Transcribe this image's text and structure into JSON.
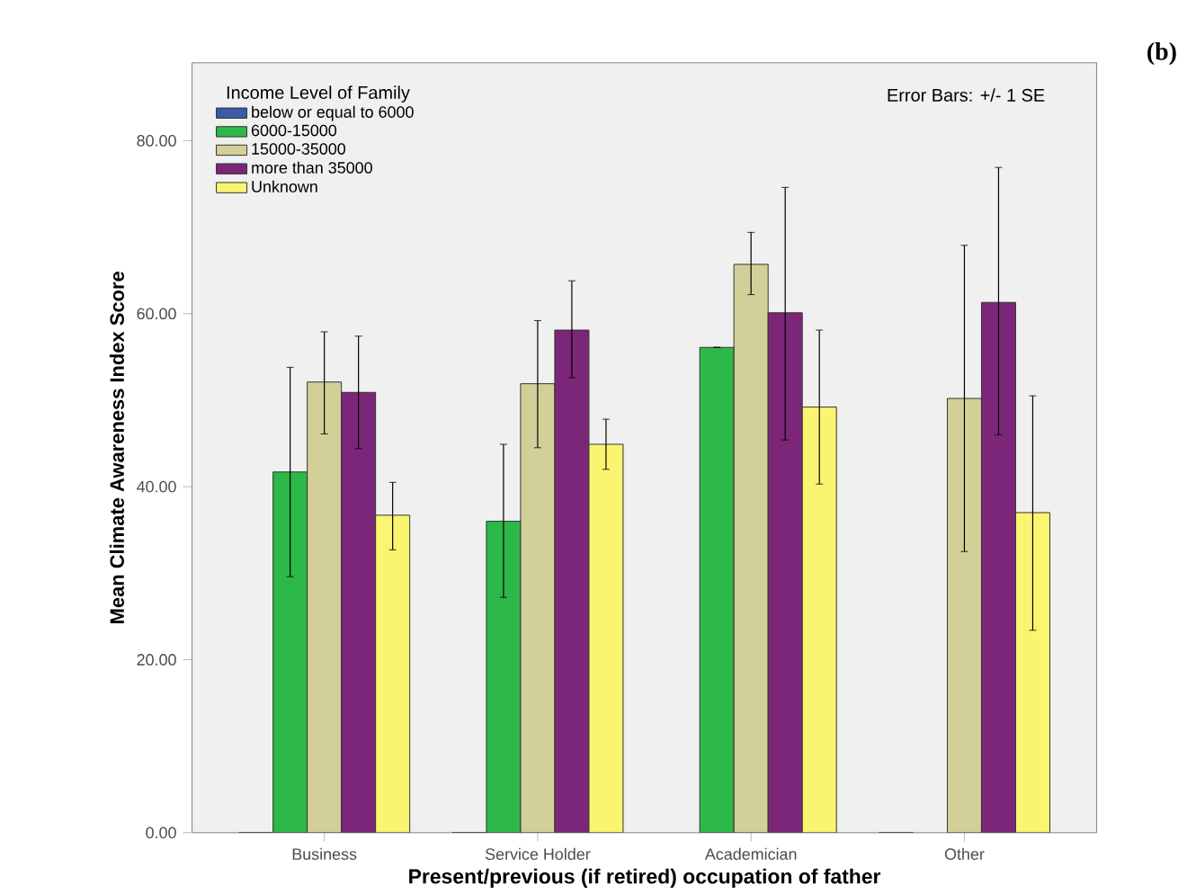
{
  "chart_data": {
    "type": "bar",
    "xlabel": "Present/previous (if retired) occupation of father",
    "ylabel": "Mean Climate Awareness Index Score",
    "legend_title": "Income Level of Family",
    "annotations": [
      "Error Bars: +/- 1 SE",
      "(b)"
    ],
    "categories": [
      "Business",
      "Service Holder",
      "Academician",
      "Other"
    ],
    "ylim": [
      0,
      89
    ],
    "yticks": [
      {
        "value": 0,
        "label": "0.00"
      },
      {
        "value": 20,
        "label": "20.00"
      },
      {
        "value": 40,
        "label": "40.00"
      },
      {
        "value": 60,
        "label": "60.00"
      },
      {
        "value": 80,
        "label": "80.00"
      }
    ],
    "legend": "top left",
    "series": [
      {
        "name": "below or equal to 6000",
        "color": "#3b5ba7",
        "values": [
          0,
          0,
          null,
          0
        ]
      },
      {
        "name": "6000-15000",
        "color": "#2db84a",
        "values": [
          41.7,
          36.0,
          56.1,
          null
        ],
        "errors": [
          [
            29.6,
            53.8
          ],
          [
            27.2,
            44.9
          ],
          null,
          null
        ]
      },
      {
        "name": "15000-35000",
        "color": "#d3cf98",
        "values": [
          52.1,
          51.9,
          65.7,
          50.2
        ],
        "errors": [
          [
            46.1,
            57.9
          ],
          [
            44.5,
            59.2
          ],
          [
            62.2,
            69.4
          ],
          [
            32.5,
            67.9
          ]
        ]
      },
      {
        "name": "more than 35000",
        "color": "#7b2679",
        "values": [
          50.9,
          58.1,
          60.1,
          61.3
        ],
        "errors": [
          [
            44.4,
            57.4
          ],
          [
            52.6,
            63.8
          ],
          [
            45.4,
            74.6
          ],
          [
            46.0,
            76.9
          ]
        ]
      },
      {
        "name": "Unknown",
        "color": "#faf570",
        "values": [
          36.7,
          44.9,
          49.2,
          37.0
        ],
        "errors": [
          [
            32.7,
            40.5
          ],
          [
            42.0,
            47.8
          ],
          [
            40.3,
            58.1
          ],
          [
            23.4,
            50.5
          ]
        ]
      }
    ]
  }
}
